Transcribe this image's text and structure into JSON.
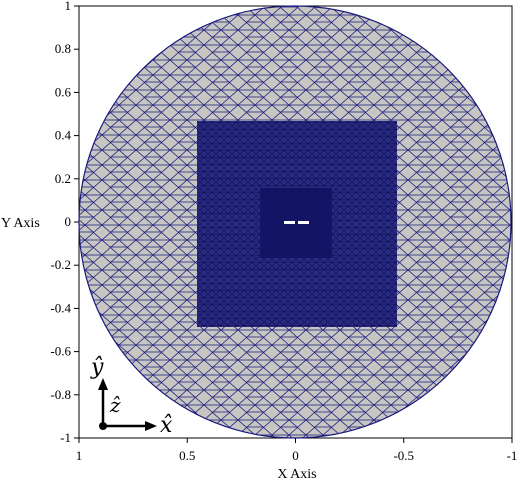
{
  "axes": {
    "x_label": "X Axis",
    "y_label": "Y Axis",
    "x_ticks": [
      "1",
      "0.5",
      "0",
      "-0.5",
      "-1"
    ],
    "x_tick_values": [
      1,
      0.5,
      0,
      -0.5,
      -1
    ],
    "y_ticks": [
      "1",
      "0.8",
      "0.6",
      "0.4",
      "0.2",
      "0",
      "-0.2",
      "-0.4",
      "-0.6",
      "-0.8",
      "-1"
    ],
    "y_tick_values": [
      1,
      0.8,
      0.6,
      0.4,
      0.2,
      0,
      -0.2,
      -0.4,
      -0.6,
      -0.8,
      -1
    ],
    "x_range": [
      1,
      -1
    ],
    "y_range": [
      -1,
      1
    ]
  },
  "mesh": {
    "domain_radius": 1,
    "refined_square_half_width": 0.45,
    "inner_square_half_width": 0.15,
    "colors": {
      "face": "#c8c6c2",
      "edge": "#1a1a7e",
      "dense": "#141466",
      "slit": "#ffffff"
    }
  },
  "triad": {
    "y_glyph": "ŷ",
    "z_glyph": "ẑ",
    "x_glyph": "x̂"
  }
}
